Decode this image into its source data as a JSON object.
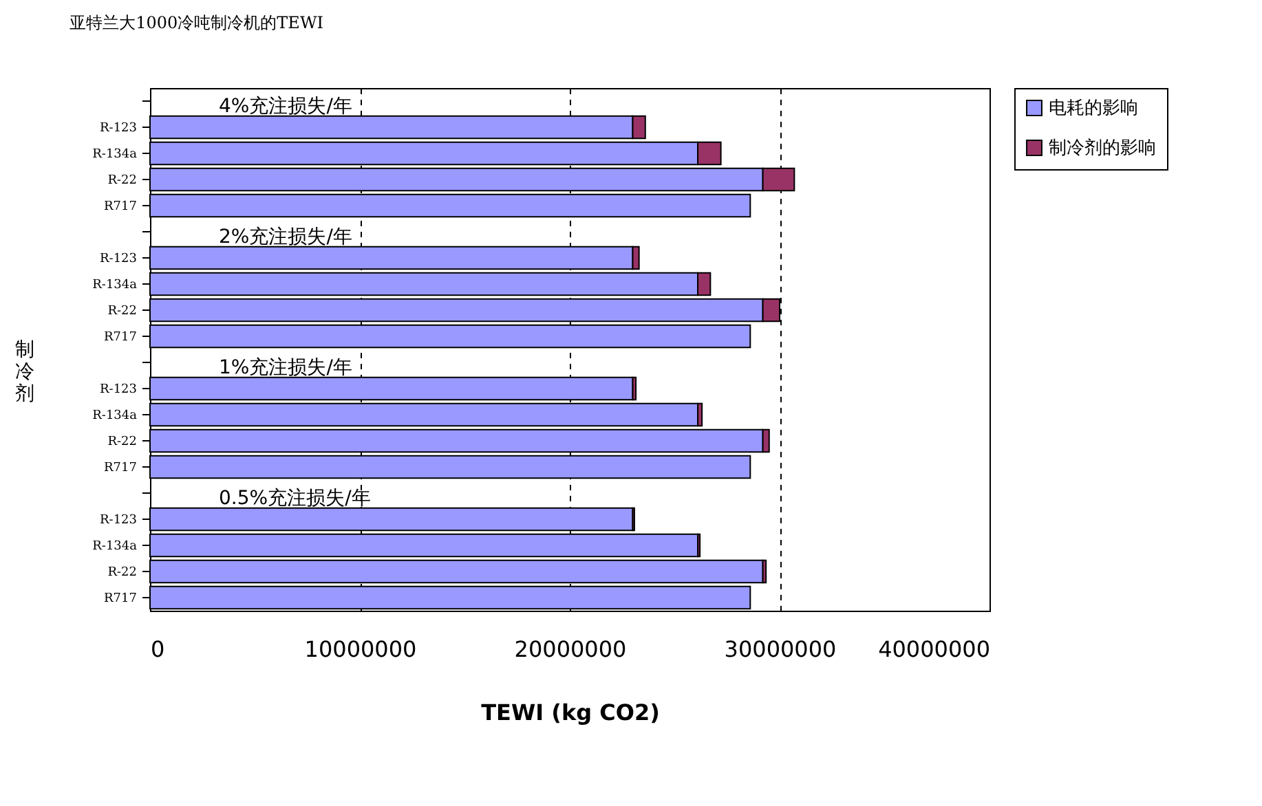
{
  "chart_data": {
    "type": "bar",
    "orientation": "horizontal",
    "stacked": true,
    "title": "亚特兰大1000冷吨制冷机的TEWI",
    "xlabel": "TEWI (kg CO2)",
    "ylabel": "制冷剂",
    "categories": [
      "R-123",
      "R-134a",
      "R-22",
      "R717",
      "R-123",
      "R-134a",
      "R-22",
      "R717",
      "R-123",
      "R-134a",
      "R-22",
      "R717",
      "R-123",
      "R-134a",
      "R-22",
      "R717"
    ],
    "series": [
      {
        "name": "电耗的影响",
        "color": "#9999ff",
        "values": [
          23000000,
          26100000,
          29200000,
          28600000,
          23000000,
          26100000,
          29200000,
          28600000,
          23000000,
          26100000,
          29200000,
          28600000,
          23000000,
          26100000,
          29200000,
          28600000
        ]
      },
      {
        "name": "制冷剂的影响",
        "color": "#993366",
        "values": [
          600000,
          1100000,
          1500000,
          null,
          300000,
          600000,
          800000,
          null,
          150000,
          200000,
          300000,
          null,
          80000,
          100000,
          150000,
          null
        ]
      }
    ],
    "annotations": [
      "4%充注损失/年",
      "2%充注损失/年",
      "1%充注损失/年",
      "0.5%充注损失/年"
    ],
    "xlim": [
      0,
      40000000
    ],
    "xticks": [
      0,
      10000000,
      20000000,
      30000000,
      40000000
    ],
    "grid": "x",
    "legend": "right"
  }
}
